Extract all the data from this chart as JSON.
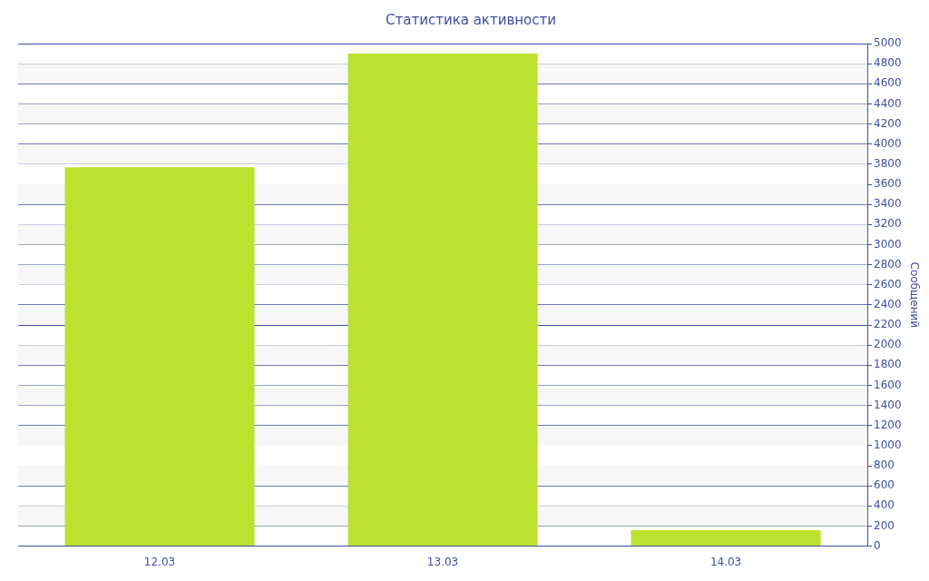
{
  "chart_data": {
    "type": "bar",
    "title": "Статистика активности",
    "y2label": "Сообщений",
    "categories": [
      "12.03",
      "13.03",
      "14.03"
    ],
    "series": [
      {
        "color": "#bce12f",
        "values": [
          3770,
          4900,
          160
        ],
        "axis": "y2"
      }
    ],
    "y2lim": [
      0,
      5000
    ],
    "y2ticks": [
      0,
      200,
      400,
      600,
      800,
      1000,
      1200,
      1400,
      1600,
      1800,
      2000,
      2200,
      2400,
      2600,
      2800,
      3000,
      3200,
      3400,
      3600,
      3800,
      4000,
      4200,
      4400,
      4600,
      4800,
      5000
    ],
    "grid": "y",
    "legend": false
  }
}
